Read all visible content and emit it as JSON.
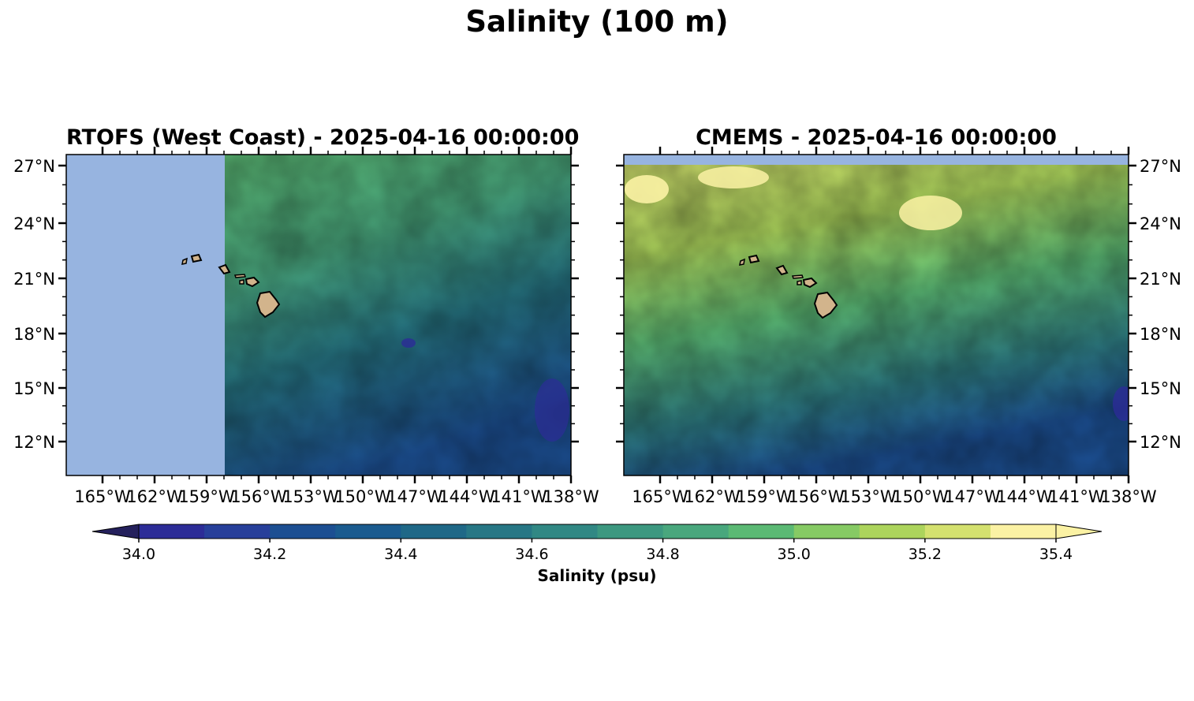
{
  "figure": {
    "title": "Salinity (100 m)"
  },
  "panels": [
    {
      "title": "RTOFS (West Coast) - 2025-04-16 00:00:00",
      "lat_ticks": [
        "27°N",
        "24°N",
        "21°N",
        "18°N",
        "15°N",
        "12°N"
      ],
      "lon_ticks": [
        "165°W",
        "162°W",
        "159°W",
        "156°W",
        "153°W",
        "150°W",
        "147°W",
        "144°W",
        "141°W",
        "138°W"
      ],
      "lat_label_side": "left",
      "no_data_region": "west of ~157.6°W"
    },
    {
      "title": "CMEMS - 2025-04-16 00:00:00",
      "lat_ticks": [
        "27°N",
        "24°N",
        "21°N",
        "18°N",
        "15°N",
        "12°N"
      ],
      "lon_ticks": [
        "165°W",
        "162°W",
        "159°W",
        "156°W",
        "153°W",
        "150°W",
        "147°W",
        "144°W",
        "141°W",
        "138°W"
      ],
      "lat_label_side": "right",
      "no_data_region": "north of ~27.5°N"
    }
  ],
  "colorbar": {
    "label": "Salinity (psu)",
    "ticks": [
      "34.0",
      "34.2",
      "34.4",
      "34.6",
      "34.8",
      "35.0",
      "35.2",
      "35.4"
    ],
    "levels": [
      34.0,
      34.1,
      34.2,
      34.3,
      34.4,
      34.5,
      34.6,
      34.7,
      34.8,
      34.9,
      35.0,
      35.1,
      35.2,
      35.3,
      35.4
    ],
    "extend": "both",
    "colors": [
      "#24205c",
      "#2c2c97",
      "#273f9a",
      "#1c4f92",
      "#1a5b8f",
      "#1f6887",
      "#277785",
      "#318884",
      "#3c9880",
      "#49a77d",
      "#5bb974",
      "#86ca64",
      "#acd45c",
      "#d4e16f",
      "#fbf2a4"
    ]
  },
  "colors": {
    "nodata": "#97b4e0",
    "land": "#d2b48c",
    "coastline": "#000000"
  }
}
